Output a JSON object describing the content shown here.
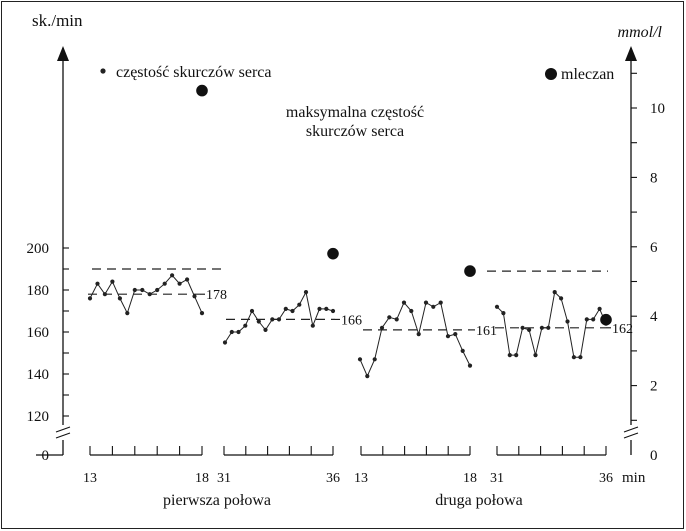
{
  "chart_data": {
    "type": "line",
    "left_axis": {
      "label": "sk./min",
      "ticks": [
        200,
        180,
        160,
        140,
        120,
        0
      ]
    },
    "right_axis": {
      "label": "mmol/l",
      "ticks": [
        10,
        8,
        6,
        4,
        2,
        0
      ]
    },
    "x_unit": "min",
    "legend": {
      "heart_rate": "częstość skurczów serca",
      "lactate": "mleczan",
      "max_hr": "maksymalna częstość skurczów serca"
    },
    "max_hr_line1": "maksymalna częstość",
    "max_hr_line2": "skurczów serca",
    "halves": [
      {
        "label": "pierwsza połowa",
        "start_label": "13",
        "end_label": "18"
      },
      {
        "label": "",
        "start_label": "31",
        "end_label": "36"
      },
      {
        "label": "druga połowa",
        "start_label": "13",
        "end_label": "18"
      },
      {
        "label": "",
        "start_label": "31",
        "end_label": "36"
      }
    ],
    "segments": [
      {
        "x_start": 13,
        "x_end": 18,
        "max_hr": 190,
        "mean_hr": 178,
        "mean_label": "178",
        "lactate_mmol": 10.5,
        "hr": [
          176,
          183,
          178,
          184,
          176,
          169,
          180,
          180,
          178,
          180,
          183,
          187,
          183,
          185,
          177,
          169
        ]
      },
      {
        "x_start": 31,
        "x_end": 36,
        "max_hr": null,
        "mean_hr": 166,
        "mean_label": "166",
        "lactate_mmol": 5.8,
        "hr": [
          155,
          160,
          160,
          163,
          170,
          165,
          161,
          166,
          166,
          171,
          170,
          173,
          179,
          163,
          171,
          171,
          170
        ]
      },
      {
        "x_start": 13,
        "x_end": 18,
        "max_hr": null,
        "mean_hr": 161,
        "mean_label": "161",
        "lactate_mmol": 5.3,
        "hr": [
          147,
          139,
          147,
          162,
          167,
          166,
          174,
          170,
          159,
          174,
          172,
          174,
          158,
          159,
          151,
          144
        ]
      },
      {
        "x_start": 31,
        "x_end": 36,
        "max_hr": 189,
        "mean_hr": 162,
        "mean_label": "162",
        "lactate_mmol": 3.9,
        "hr": [
          172,
          169,
          149,
          149,
          162,
          161,
          149,
          162,
          162,
          179,
          176,
          165,
          148,
          148,
          166,
          166,
          171,
          164
        ]
      }
    ]
  }
}
